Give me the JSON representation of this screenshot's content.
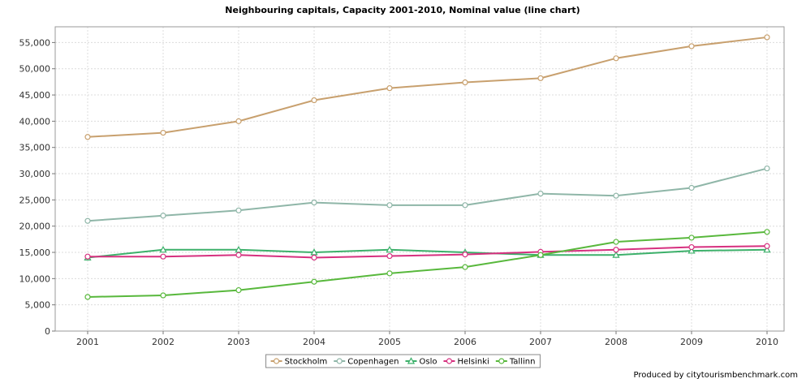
{
  "chart_data": {
    "type": "line",
    "title": "Neighbouring capitals, Capacity 2001-2010, Nominal value (line chart)",
    "xlabel": "",
    "ylabel": "",
    "x": [
      "2001",
      "2002",
      "2003",
      "2004",
      "2005",
      "2006",
      "2007",
      "2008",
      "2009",
      "2010"
    ],
    "ylim": [
      0,
      58000
    ],
    "yticks": [
      0,
      5000,
      10000,
      15000,
      20000,
      25000,
      30000,
      35000,
      40000,
      45000,
      50000,
      55000
    ],
    "ytick_labels": [
      "0",
      "5,000",
      "10,000",
      "15,000",
      "20,000",
      "25,000",
      "30,000",
      "35,000",
      "40,000",
      "45,000",
      "50,000",
      "55,000"
    ],
    "grid": true,
    "legend_position": "bottom-center",
    "series": [
      {
        "name": "Stockholm",
        "color": "#c8a06e",
        "marker": "circle",
        "values": [
          37000,
          37800,
          40000,
          44000,
          46300,
          47400,
          48200,
          52000,
          54300,
          56000
        ]
      },
      {
        "name": "Copenhagen",
        "color": "#8fb6a8",
        "marker": "circle",
        "values": [
          21000,
          22000,
          23000,
          24500,
          24000,
          24000,
          26200,
          25800,
          27300,
          31000
        ]
      },
      {
        "name": "Oslo",
        "color": "#3cb06a",
        "marker": "triangle",
        "values": [
          14000,
          15500,
          15500,
          15000,
          15500,
          15000,
          14500,
          14500,
          15300,
          15500
        ]
      },
      {
        "name": "Helsinki",
        "color": "#d6307f",
        "marker": "circle",
        "values": [
          14200,
          14200,
          14500,
          14000,
          14300,
          14600,
          15100,
          15500,
          16000,
          16200
        ]
      },
      {
        "name": "Tallinn",
        "color": "#58b83c",
        "marker": "circle",
        "values": [
          6500,
          6800,
          7800,
          9400,
          11000,
          12200,
          14500,
          17000,
          17800,
          18900
        ]
      }
    ]
  },
  "footer": {
    "credit": "Produced by citytourismbenchmark.com"
  }
}
